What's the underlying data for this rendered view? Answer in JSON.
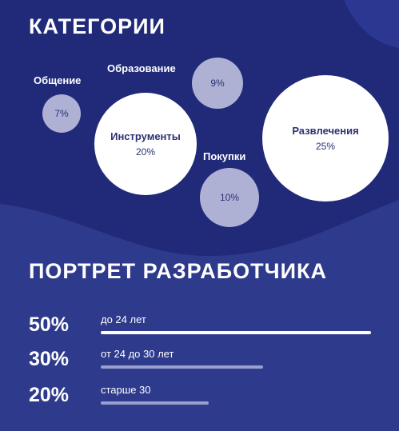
{
  "categories": {
    "title": "КАТЕГОРИИ",
    "items": [
      {
        "label": "Общение",
        "value": "7%"
      },
      {
        "label": "Образование",
        "value": "9%"
      },
      {
        "label": "Инструменты",
        "value": "20%"
      },
      {
        "label": "Покупки",
        "value": "10%"
      },
      {
        "label": "Развлечения",
        "value": "25%"
      }
    ]
  },
  "portrait": {
    "title": "ПОРТРЕТ РАЗРАБОТЧИКА",
    "rows": [
      {
        "value": "50%",
        "label": "до 24 лет",
        "fraction": 0.5,
        "color": "#ffffff"
      },
      {
        "value": "30%",
        "label": "от 24 до 30 лет",
        "fraction": 0.3,
        "color": "#9aa0cc"
      },
      {
        "value": "20%",
        "label": "старше 30",
        "fraction": 0.2,
        "color": "#9aa0cc"
      }
    ]
  },
  "colors": {
    "background_top": "#202a78",
    "background_bottom": "#2e3a8c",
    "bubble_light": "#aeb1d4",
    "bubble_white": "#ffffff",
    "text_dark": "#2b3270"
  }
}
